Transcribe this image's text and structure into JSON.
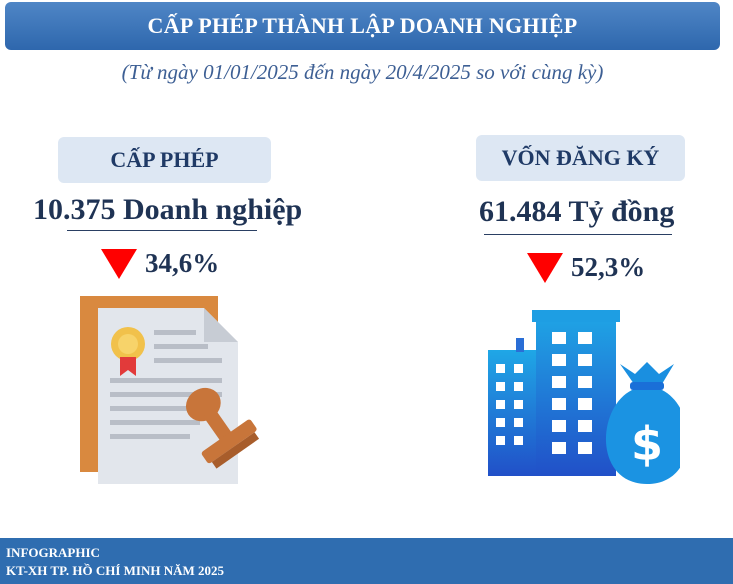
{
  "header": {
    "title": "CẤP PHÉP THÀNH LẬP DOANH NGHIỆP",
    "subtitle": "(Từ ngày 01/01/2025 đến ngày 20/4/2025 so với cùng kỳ)"
  },
  "licenses": {
    "label": "CẤP PHÉP",
    "value": "10.375 Doanh nghiệp",
    "change": "34,6%",
    "trend_icon": "red-down-triangle-icon",
    "illustration": "certificate-stamp-icon"
  },
  "capital": {
    "label": "VỐN ĐĂNG KÝ",
    "value": "61.484 Tỷ đồng",
    "change": "52,3%",
    "trend_icon": "red-down-triangle-icon",
    "illustration": "buildings-money-bag-icon"
  },
  "footer": {
    "line1": "INFOGRAPHIC",
    "line2": "KT-XH TP. HỒ CHÍ MINH NĂM 2025"
  },
  "colors": {
    "title_bar": "#2e67ad",
    "pill": "#dde7f3",
    "text_dark": "#1f3354",
    "down": "#ff0000",
    "footer": "#2f6db0"
  }
}
